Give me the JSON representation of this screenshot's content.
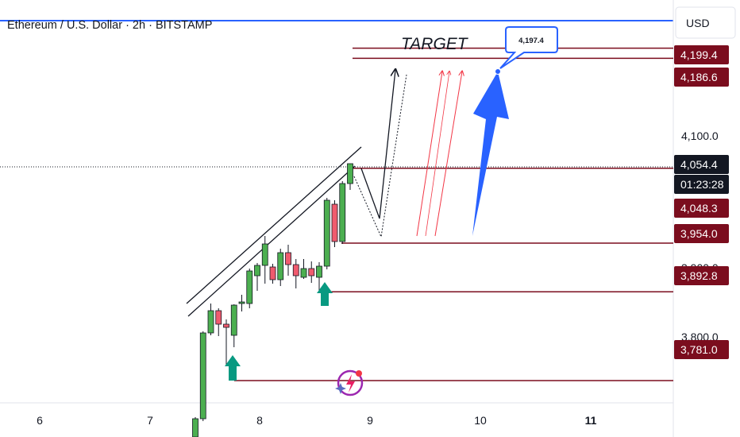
{
  "header": {
    "title": "Ethereum / U.S. Dollar · 2h · BITSTAMP",
    "currency": "USD"
  },
  "annotations": {
    "target_label": "TARGET",
    "callout_value": "4,197.4"
  },
  "price_axis": {
    "ticks": [
      "4,100.0",
      "3,800.0",
      "3,900.0"
    ],
    "badges": [
      {
        "label": "4,199.4",
        "kind": "level"
      },
      {
        "label": "4,186.6",
        "kind": "level"
      },
      {
        "label": "4,054.4",
        "kind": "current"
      },
      {
        "label": "01:23:28",
        "kind": "countdown"
      },
      {
        "label": "4,048.3",
        "kind": "level"
      },
      {
        "label": "3,954.0",
        "kind": "level"
      },
      {
        "label": "3,892.8",
        "kind": "level"
      },
      {
        "label": "3,781.0",
        "kind": "level"
      }
    ]
  },
  "time_axis": {
    "labels": [
      "6",
      "7",
      "8",
      "9",
      "10",
      "11"
    ]
  },
  "colors": {
    "up": "#4caf50",
    "down": "#f05b6e",
    "level": "#7b0d1e",
    "header_line": "#2962ff",
    "projection": "#f23645",
    "arrow_blue": "#2962ff",
    "marker_teal": "#089981",
    "current_badge": "#131722"
  },
  "chart_data": {
    "type": "candlestick",
    "symbol": "Ethereum / U.S. Dollar",
    "interval": "2h",
    "exchange": "BITSTAMP",
    "y_range": [
      3725,
      4225
    ],
    "candles": [
      {
        "o": 3710,
        "h": 3735,
        "l": 3700,
        "c": 3733
      },
      {
        "o": 3733,
        "h": 3843,
        "l": 3730,
        "c": 3841
      },
      {
        "o": 3841,
        "h": 3878,
        "l": 3838,
        "c": 3869
      },
      {
        "o": 3869,
        "h": 3872,
        "l": 3837,
        "c": 3852
      },
      {
        "o": 3852,
        "h": 3858,
        "l": 3800,
        "c": 3848
      },
      {
        "o": 3838,
        "h": 3877,
        "l": 3823,
        "c": 3876
      },
      {
        "o": 3878,
        "h": 3889,
        "l": 3868,
        "c": 3880
      },
      {
        "o": 3878,
        "h": 3922,
        "l": 3872,
        "c": 3919
      },
      {
        "o": 3913,
        "h": 3929,
        "l": 3894,
        "c": 3926
      },
      {
        "o": 3926,
        "h": 3963,
        "l": 3903,
        "c": 3953
      },
      {
        "o": 3924,
        "h": 3928,
        "l": 3903,
        "c": 3908
      },
      {
        "o": 3908,
        "h": 3947,
        "l": 3900,
        "c": 3942
      },
      {
        "o": 3942,
        "h": 3952,
        "l": 3913,
        "c": 3927
      },
      {
        "o": 3927,
        "h": 3934,
        "l": 3897,
        "c": 3913
      },
      {
        "o": 3911,
        "h": 3934,
        "l": 3909,
        "c": 3922
      },
      {
        "o": 3922,
        "h": 3931,
        "l": 3904,
        "c": 3913
      },
      {
        "o": 3911,
        "h": 3930,
        "l": 3892,
        "c": 3925
      },
      {
        "o": 3925,
        "h": 4011,
        "l": 3921,
        "c": 4008
      },
      {
        "o": 4003,
        "h": 4008,
        "l": 3949,
        "c": 3956
      },
      {
        "o": 3956,
        "h": 4032,
        "l": 3953,
        "c": 4029
      },
      {
        "o": 4029,
        "h": 4054,
        "l": 4021,
        "c": 4054
      }
    ],
    "horizontal_levels": [
      4199.4,
      4186.6,
      4048.3,
      3954.0,
      3892.8,
      3781.0
    ],
    "current_price": 4054.4,
    "target_price": 4197.4
  }
}
